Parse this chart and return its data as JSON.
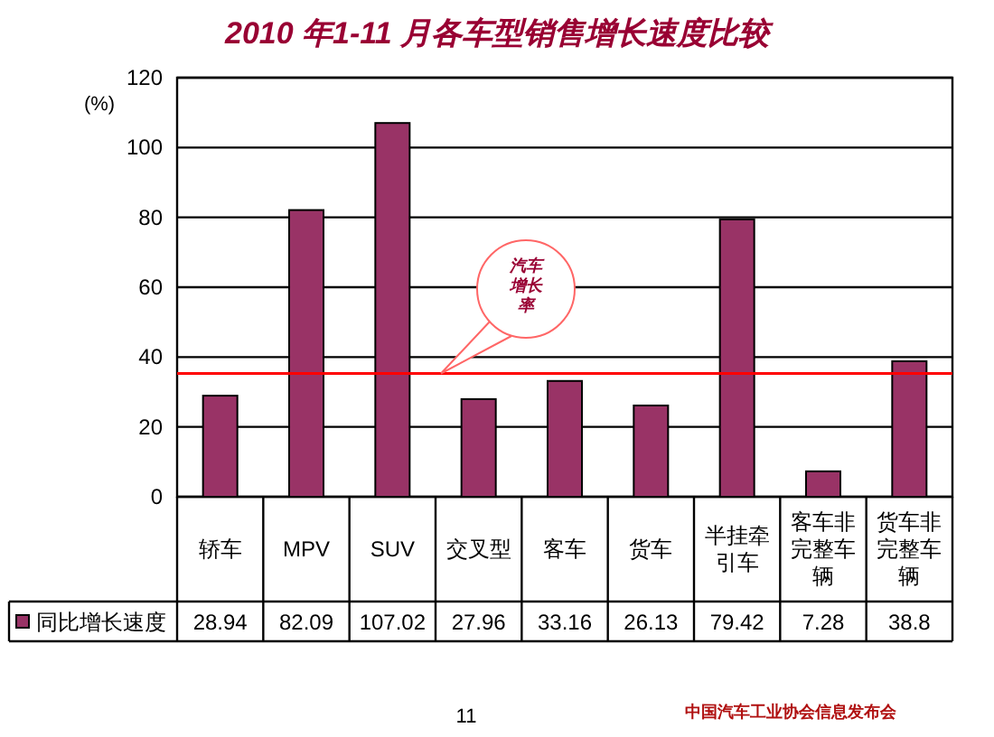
{
  "chart_data": {
    "type": "bar",
    "title": "2010 年1-11 月各车型销售增长速度比较",
    "ylabel": "(%)",
    "categories": [
      "轿车",
      "MPV",
      "SUV",
      "交叉型",
      "客车",
      "货车",
      "半挂牵引车",
      "客车非完整车辆",
      "货车非完整车辆"
    ],
    "series": [
      {
        "name": "同比增长速度",
        "color": "#993366",
        "values": [
          28.94,
          82.09,
          107.02,
          27.96,
          33.16,
          26.13,
          79.42,
          7.28,
          38.8
        ]
      }
    ],
    "ylim": [
      0,
      120
    ],
    "yticks": [
      0,
      20,
      40,
      60,
      80,
      100,
      120
    ],
    "grid": "y",
    "legend": "bottom left",
    "data_labels": true,
    "ref_lines": [
      {
        "axis": "y",
        "value": 35.3,
        "color": "#ff0000"
      }
    ],
    "annotations": [
      "11",
      "中国汽车工业协会信息发布会",
      "汽车增长率"
    ]
  }
}
